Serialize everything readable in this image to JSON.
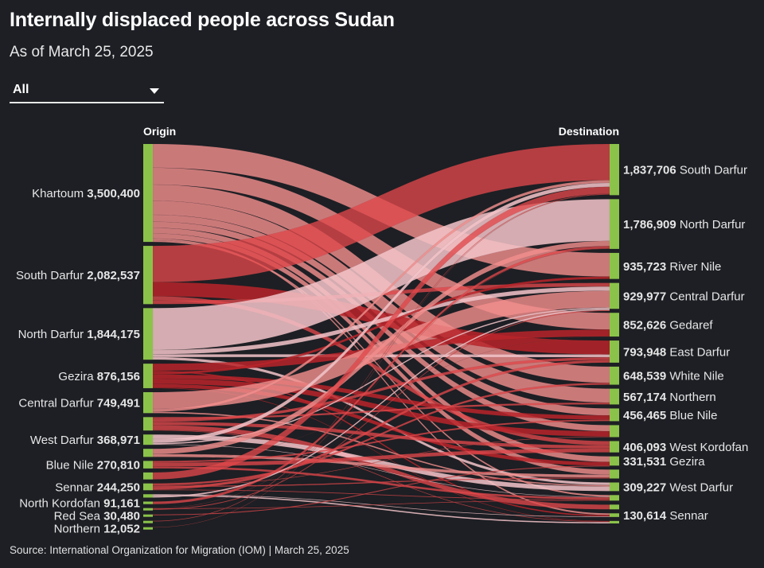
{
  "header": {
    "title": "Internally displaced people across Sudan",
    "subtitle": "As of March 25, 2025"
  },
  "filter": {
    "selected": "All"
  },
  "source": "Source: International Organization for Migration (IOM) | March 25, 2025",
  "colors": {
    "background": "#1d1f24",
    "node": "#8bc34a",
    "link_red": "#e0484a",
    "link_dark": "#b8242a",
    "link_salmon": "#f08e8c",
    "link_pink": "#f2c4c8"
  },
  "chart_data": {
    "type": "sankey",
    "title": "Internally displaced people across Sudan",
    "origin_header": "Origin",
    "destination_header": "Destination",
    "origins": [
      {
        "name": "Khartoum",
        "value": 3500400,
        "value_label": "3,500,400",
        "labeled": true
      },
      {
        "name": "South Darfur",
        "value": 2082537,
        "value_label": "2,082,537",
        "labeled": true
      },
      {
        "name": "North Darfur",
        "value": 1844175,
        "value_label": "1,844,175",
        "labeled": true
      },
      {
        "name": "Gezira",
        "value": 876156,
        "value_label": "876,156",
        "labeled": true
      },
      {
        "name": "Central Darfur",
        "value": 749491,
        "value_label": "749,491",
        "labeled": true
      },
      {
        "name": "Unlabeled origin A",
        "value": 480000,
        "labeled": false
      },
      {
        "name": "West Darfur",
        "value": 368971,
        "value_label": "368,971",
        "labeled": true
      },
      {
        "name": "Unlabeled origin B",
        "value": 290000,
        "labeled": false
      },
      {
        "name": "Blue Nile",
        "value": 270810,
        "value_label": "270,810",
        "labeled": true
      },
      {
        "name": "Unlabeled origin C",
        "value": 250000,
        "labeled": false
      },
      {
        "name": "Sennar",
        "value": 244250,
        "value_label": "244,250",
        "labeled": true
      },
      {
        "name": "Unlabeled origin D",
        "value": 120000,
        "labeled": false
      },
      {
        "name": "North Kordofan",
        "value": 91161,
        "value_label": "91,161",
        "labeled": true
      },
      {
        "name": "Unlabeled origin E",
        "value": 60000,
        "labeled": false
      },
      {
        "name": "Red Sea",
        "value": 30480,
        "value_label": "30,480",
        "labeled": true
      },
      {
        "name": "Unlabeled origin F",
        "value": 20000,
        "labeled": false
      },
      {
        "name": "Northern",
        "value": 12052,
        "value_label": "12,052",
        "labeled": true
      }
    ],
    "destinations": [
      {
        "name": "South Darfur",
        "value": 1837706,
        "value_label": "1,837,706",
        "labeled": true
      },
      {
        "name": "North Darfur",
        "value": 1786909,
        "value_label": "1,786,909",
        "labeled": true
      },
      {
        "name": "River Nile",
        "value": 935723,
        "value_label": "935,723",
        "labeled": true
      },
      {
        "name": "Central Darfur",
        "value": 929977,
        "value_label": "929,977",
        "labeled": true
      },
      {
        "name": "Gedaref",
        "value": 852626,
        "value_label": "852,626",
        "labeled": true
      },
      {
        "name": "East Darfur",
        "value": 793948,
        "value_label": "793,948",
        "labeled": true
      },
      {
        "name": "White Nile",
        "value": 648539,
        "value_label": "648,539",
        "labeled": true
      },
      {
        "name": "Northern",
        "value": 567174,
        "value_label": "567,174",
        "labeled": true
      },
      {
        "name": "Blue Nile",
        "value": 456465,
        "value_label": "456,465",
        "labeled": true
      },
      {
        "name": "Unlabeled destination A",
        "value": 430000,
        "labeled": false
      },
      {
        "name": "West Kordofan",
        "value": 406093,
        "value_label": "406,093",
        "labeled": true
      },
      {
        "name": "Gezira",
        "value": 331531,
        "value_label": "331,531",
        "labeled": true
      },
      {
        "name": "Unlabeled destination B",
        "value": 320000,
        "labeled": false
      },
      {
        "name": "West Darfur",
        "value": 309227,
        "value_label": "309,227",
        "labeled": true
      },
      {
        "name": "Unlabeled destination C",
        "value": 200000,
        "labeled": false
      },
      {
        "name": "Unlabeled destination D",
        "value": 170000,
        "labeled": false
      },
      {
        "name": "Sennar",
        "value": 130614,
        "value_label": "130,614",
        "labeled": true
      },
      {
        "name": "Unlabeled destination E",
        "value": 90000,
        "labeled": false
      }
    ],
    "links": [
      {
        "from": "Khartoum",
        "to": "River Nile",
        "value": 850000,
        "tone": "salmon"
      },
      {
        "from": "Khartoum",
        "to": "Gedaref",
        "value": 600000,
        "tone": "salmon"
      },
      {
        "from": "Khartoum",
        "to": "White Nile",
        "value": 580000,
        "tone": "salmon"
      },
      {
        "from": "Khartoum",
        "to": "Northern",
        "value": 500000,
        "tone": "salmon"
      },
      {
        "from": "Khartoum",
        "to": "Blue Nile",
        "value": 250000,
        "tone": "salmon"
      },
      {
        "from": "Khartoum",
        "to": "Unlabeled destination A",
        "value": 220000,
        "tone": "salmon"
      },
      {
        "from": "Khartoum",
        "to": "Gezira",
        "value": 200000,
        "tone": "salmon"
      },
      {
        "from": "Khartoum",
        "to": "Unlabeled destination B",
        "value": 180000,
        "tone": "salmon"
      },
      {
        "from": "Khartoum",
        "to": "Sennar",
        "value": 60000,
        "tone": "salmon"
      },
      {
        "from": "Khartoum",
        "to": "Unlabeled destination C",
        "value": 60400,
        "tone": "salmon"
      },
      {
        "from": "South Darfur",
        "to": "South Darfur",
        "value": 1300000,
        "tone": "red"
      },
      {
        "from": "South Darfur",
        "to": "East Darfur",
        "value": 500000,
        "tone": "dark"
      },
      {
        "from": "South Darfur",
        "to": "West Kordofan",
        "value": 150000,
        "tone": "red"
      },
      {
        "from": "South Darfur",
        "to": "Central Darfur",
        "value": 132537,
        "tone": "red"
      },
      {
        "from": "North Darfur",
        "to": "North Darfur",
        "value": 1500000,
        "tone": "pink"
      },
      {
        "from": "North Darfur",
        "to": "Central Darfur",
        "value": 150000,
        "tone": "pink"
      },
      {
        "from": "North Darfur",
        "to": "East Darfur",
        "value": 100000,
        "tone": "pink"
      },
      {
        "from": "North Darfur",
        "to": "West Darfur",
        "value": 94175,
        "tone": "pink"
      },
      {
        "from": "Gezira",
        "to": "Gedaref",
        "value": 250000,
        "tone": "dark"
      },
      {
        "from": "Gezira",
        "to": "Sennar",
        "value": 50000,
        "tone": "dark"
      },
      {
        "from": "Gezira",
        "to": "River Nile",
        "value": 85723,
        "tone": "dark"
      },
      {
        "from": "Gezira",
        "to": "Blue Nile",
        "value": 150000,
        "tone": "dark"
      },
      {
        "from": "Gezira",
        "to": "Unlabeled destination A",
        "value": 190000,
        "tone": "dark"
      },
      {
        "from": "Gezira",
        "to": "Gezira",
        "value": 131531,
        "tone": "dark"
      },
      {
        "from": "Gezira",
        "to": "Unlabeled destination E",
        "value": 18902,
        "tone": "dark"
      },
      {
        "from": "Central Darfur",
        "to": "Central Darfur",
        "value": 600000,
        "tone": "salmon"
      },
      {
        "from": "Central Darfur",
        "to": "South Darfur",
        "value": 100000,
        "tone": "salmon"
      },
      {
        "from": "Central Darfur",
        "to": "West Darfur",
        "value": 49491,
        "tone": "salmon"
      },
      {
        "from": "Unlabeled origin A",
        "to": "Northern",
        "value": 67174,
        "tone": "red"
      },
      {
        "from": "Unlabeled origin A",
        "to": "East Darfur",
        "value": 100000,
        "tone": "red"
      },
      {
        "from": "Unlabeled origin A",
        "to": "West Kordofan",
        "value": 120000,
        "tone": "red"
      },
      {
        "from": "Unlabeled origin A",
        "to": "Unlabeled destination D",
        "value": 170000,
        "tone": "red"
      },
      {
        "from": "Unlabeled origin A",
        "to": "Unlabeled destination E",
        "value": 22826,
        "tone": "red"
      },
      {
        "from": "West Darfur",
        "to": "West Darfur",
        "value": 165561,
        "tone": "pink"
      },
      {
        "from": "West Darfur",
        "to": "South Darfur",
        "value": 137706,
        "tone": "pink"
      },
      {
        "from": "West Darfur",
        "to": "Central Darfur",
        "value": 47440,
        "tone": "pink"
      },
      {
        "from": "West Darfur",
        "to": "Unlabeled destination C",
        "value": 18264,
        "tone": "pink"
      },
      {
        "from": "Unlabeled origin B",
        "to": "North Darfur",
        "value": 186909,
        "tone": "salmon"
      },
      {
        "from": "Unlabeled origin B",
        "to": "Unlabeled destination B",
        "value": 103091,
        "tone": "salmon"
      },
      {
        "from": "Blue Nile",
        "to": "Gedaref",
        "value": 2626,
        "tone": "red"
      },
      {
        "from": "Blue Nile",
        "to": "Blue Nile",
        "value": 56465,
        "tone": "red"
      },
      {
        "from": "Blue Nile",
        "to": "West Kordofan",
        "value": 136093,
        "tone": "red"
      },
      {
        "from": "Blue Nile",
        "to": "Unlabeled destination C",
        "value": 75626,
        "tone": "red"
      },
      {
        "from": "Unlabeled origin C",
        "to": "South Darfur",
        "value": 250000,
        "tone": "red"
      },
      {
        "from": "Sennar",
        "to": "White Nile",
        "value": 68539,
        "tone": "red"
      },
      {
        "from": "Sennar",
        "to": "Unlabeled destination A",
        "value": 20000,
        "tone": "red"
      },
      {
        "from": "Sennar",
        "to": "Unlabeled destination B",
        "value": 36909,
        "tone": "red"
      },
      {
        "from": "Sennar",
        "to": "East Darfur",
        "value": 93948,
        "tone": "red"
      },
      {
        "from": "Sennar",
        "to": "Unlabeled destination C",
        "value": 24854,
        "tone": "red"
      },
      {
        "from": "Unlabeled origin D",
        "to": "Sennar",
        "value": 20614,
        "tone": "pink"
      },
      {
        "from": "Unlabeled origin D",
        "to": "Unlabeled destination E",
        "value": 48272,
        "tone": "pink"
      },
      {
        "from": "Unlabeled origin D",
        "to": "Central Darfur",
        "value": 51114,
        "tone": "pink"
      },
      {
        "from": "North Kordofan",
        "to": "North Darfur",
        "value": 91161,
        "tone": "red"
      },
      {
        "from": "Unlabeled origin E",
        "to": "North Darfur",
        "value": 8839,
        "tone": "red"
      },
      {
        "from": "Unlabeled origin E",
        "to": "Unlabeled destination C",
        "value": 21856,
        "tone": "red"
      },
      {
        "from": "Unlabeled origin E",
        "to": "Central Darfur",
        "value": 29305,
        "tone": "red"
      },
      {
        "from": "Red Sea",
        "to": "Gezira",
        "value": 30480,
        "tone": "red"
      },
      {
        "from": "Unlabeled origin F",
        "to": "South Darfur",
        "value": 20000,
        "tone": "red"
      },
      {
        "from": "Northern",
        "to": "South Darfur",
        "value": 12052,
        "tone": "red"
      }
    ]
  }
}
